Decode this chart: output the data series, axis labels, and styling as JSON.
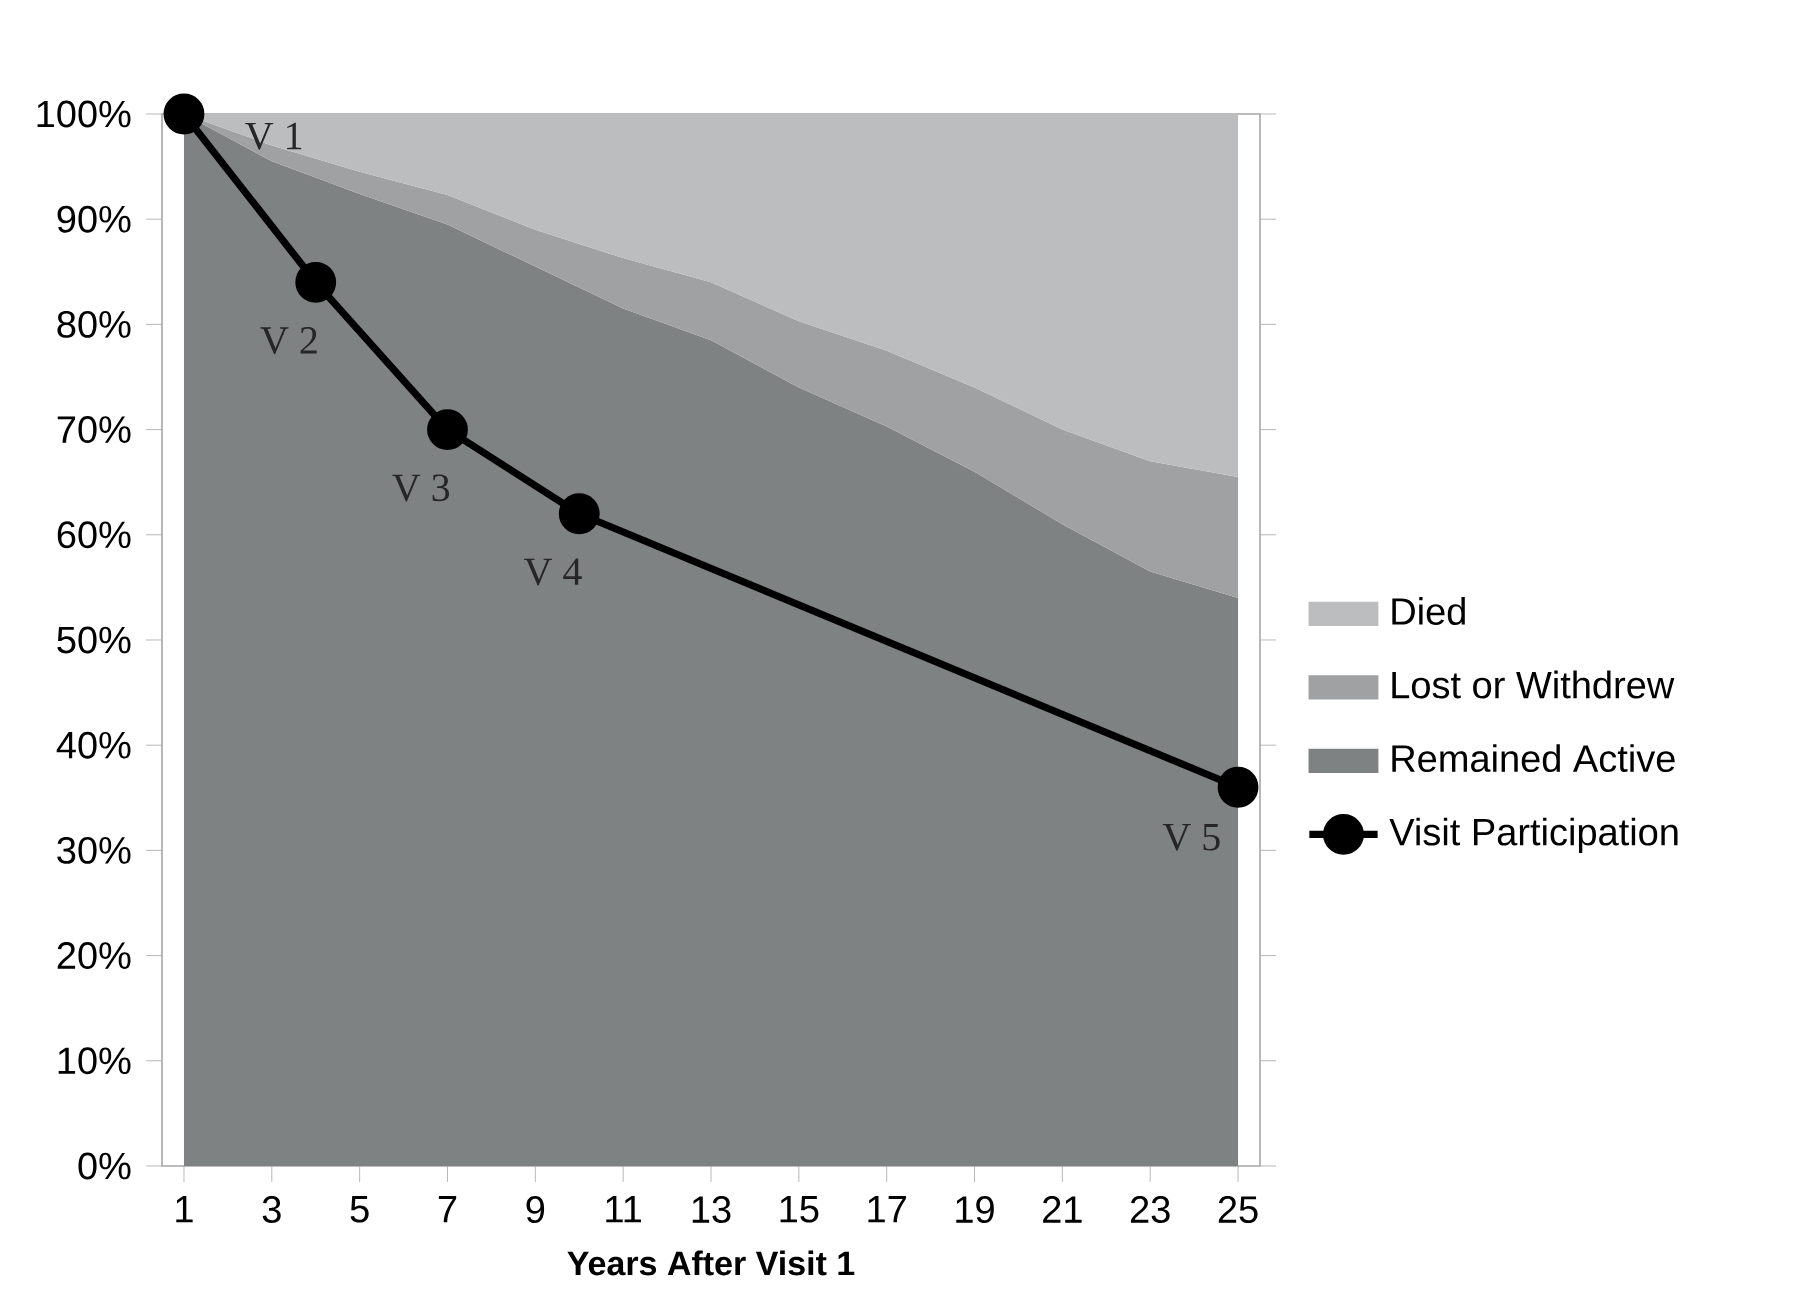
{
  "chart_data": {
    "type": "area",
    "stacked": true,
    "xlabel": "Years After Visit 1",
    "xlim": [
      0.5,
      25.5
    ],
    "xticks": [
      1,
      3,
      5,
      7,
      9,
      11,
      13,
      15,
      17,
      19,
      21,
      23,
      25
    ],
    "ylim": [
      0,
      100
    ],
    "yticks": [
      {
        "value": 0,
        "label": "0%"
      },
      {
        "value": 10,
        "label": "10%"
      },
      {
        "value": 20,
        "label": "20%"
      },
      {
        "value": 30,
        "label": "30%"
      },
      {
        "value": 40,
        "label": "40%"
      },
      {
        "value": 50,
        "label": "50%"
      },
      {
        "value": 60,
        "label": "60%"
      },
      {
        "value": 70,
        "label": "70%"
      },
      {
        "value": 80,
        "label": "80%"
      },
      {
        "value": 90,
        "label": "90%"
      },
      {
        "value": 100,
        "label": "100%"
      }
    ],
    "legend": "right",
    "series": [
      {
        "name": "Remained Active",
        "color": "#7f8283",
        "x": [
          1,
          3,
          5,
          7,
          9,
          11,
          13,
          15,
          17,
          19,
          21,
          23,
          25
        ],
        "values": [
          100,
          95.5,
          92.4,
          89.5,
          85.5,
          81.5,
          78.5,
          74,
          70.3,
          66,
          61,
          56.5,
          54
        ]
      },
      {
        "name": "Lost or Withdrew",
        "color": "#a0a1a3",
        "x": [
          1,
          3,
          5,
          7,
          9,
          11,
          13,
          15,
          17,
          19,
          21,
          23,
          25
        ],
        "values": [
          0,
          1.5,
          2.1,
          2.8,
          3.5,
          4.8,
          5.5,
          6.3,
          7.2,
          8,
          9,
          10.5,
          11.5
        ]
      },
      {
        "name": "Died",
        "color": "#bcbdbf",
        "x": [
          1,
          3,
          5,
          7,
          9,
          11,
          13,
          15,
          17,
          19,
          21,
          23,
          25
        ],
        "values": [
          0,
          3,
          5.5,
          7.7,
          11,
          13.7,
          16,
          19.7,
          22.5,
          26,
          30,
          33,
          34.5
        ]
      },
      {
        "name": "Visit  Participation",
        "type": "line",
        "color": "#000000",
        "marker": "circle",
        "x": [
          1,
          4,
          7,
          10,
          25
        ],
        "values": [
          100,
          84,
          70,
          62,
          36
        ]
      }
    ],
    "annotations": [
      {
        "text": "V 1",
        "x": 1,
        "y": 100
      },
      {
        "text": "V 2",
        "x": 4,
        "y": 84
      },
      {
        "text": "V 3",
        "x": 7,
        "y": 70
      },
      {
        "text": "V 4",
        "x": 10,
        "y": 62
      },
      {
        "text": "V 5",
        "x": 25,
        "y": 36
      }
    ]
  }
}
